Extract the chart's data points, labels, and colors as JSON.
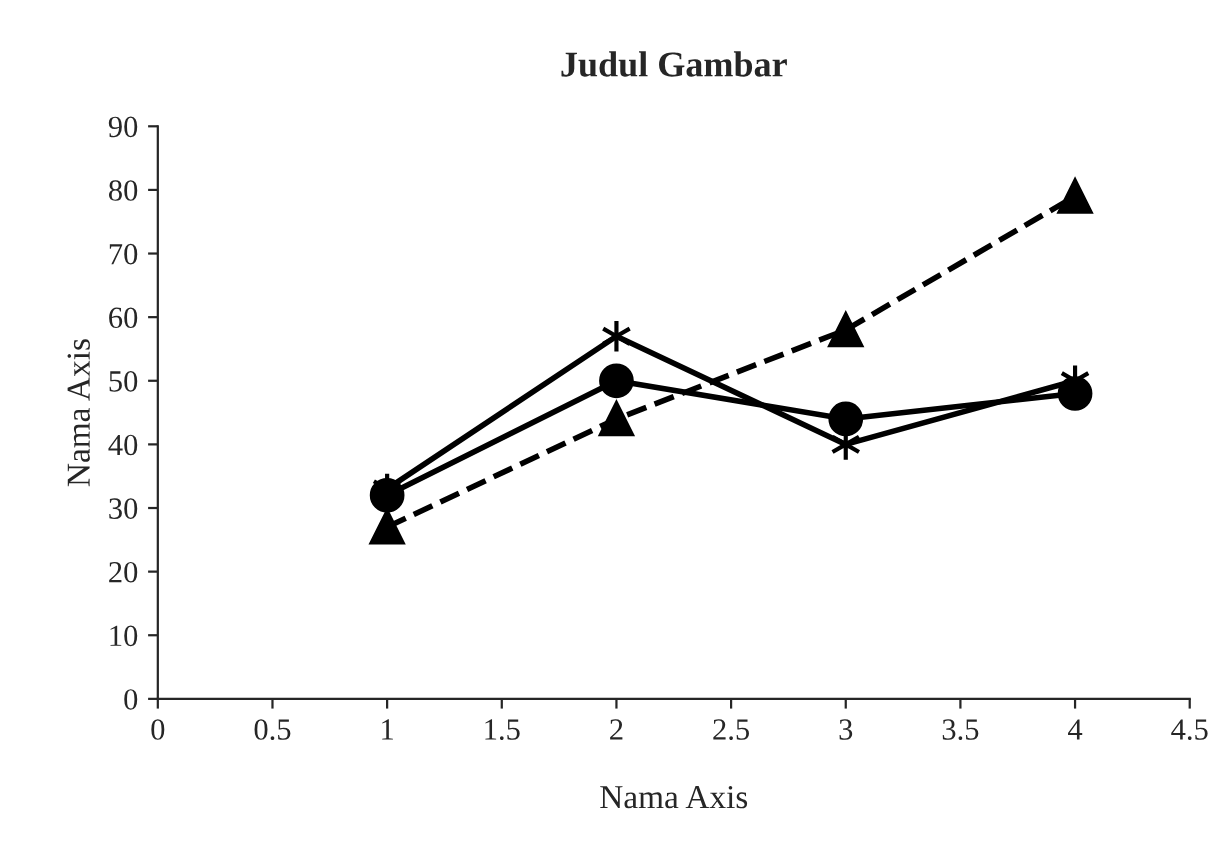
{
  "chart_data": {
    "type": "line",
    "title": "Judul Gambar",
    "xlabel": "Nama Axis",
    "ylabel": "Nama Axis",
    "x": [
      1,
      2,
      3,
      4
    ],
    "series": [
      {
        "color": "#000000",
        "values": [
          32,
          50,
          44,
          48
        ],
        "marker": "circle",
        "line_style": "solid"
      },
      {
        "color": "#000000",
        "values": [
          33,
          57,
          40,
          50
        ],
        "marker": "cross",
        "line_style": "solid"
      },
      {
        "color": "#000000",
        "values": [
          27,
          44,
          58,
          79
        ],
        "marker": "triangle",
        "line_style": "dashed"
      }
    ],
    "xlim": [
      0,
      4.5
    ],
    "xticks": [
      0,
      0.5,
      1,
      1.5,
      2,
      2.5,
      3,
      3.5,
      4,
      4.5
    ],
    "ylim": [
      0,
      90
    ],
    "yticks": [
      0,
      10,
      20,
      30,
      40,
      50,
      60,
      70,
      80,
      90
    ],
    "grid": false,
    "legend": false
  }
}
